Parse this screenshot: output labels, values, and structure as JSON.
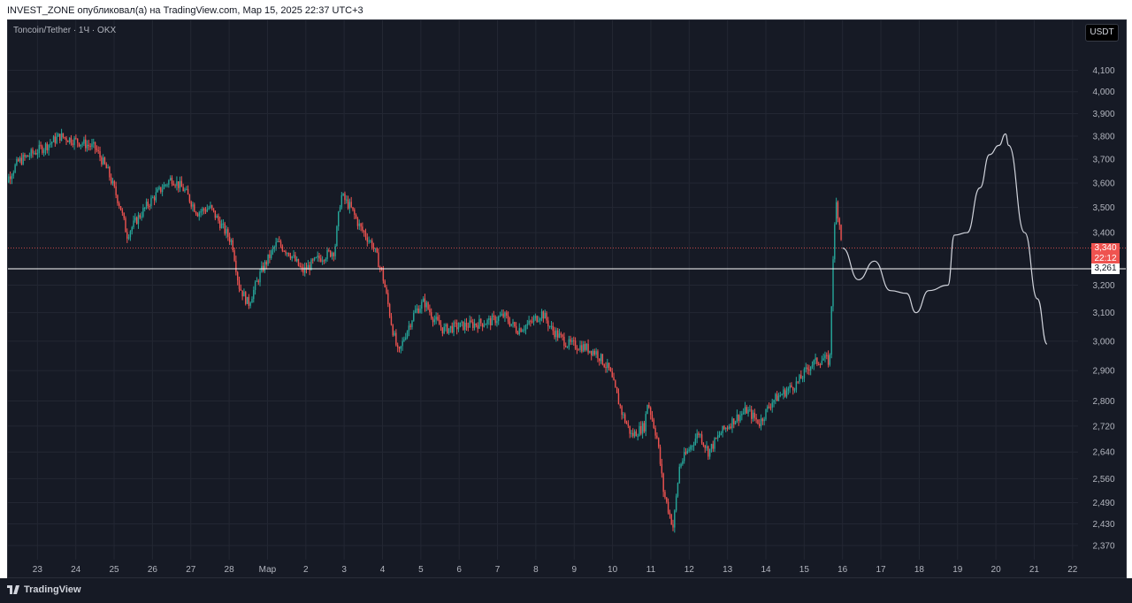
{
  "header": {
    "text": "INVEST_ZONE опубликовал(а) на TradingView.com, Мар 15, 2025 22:37 UTC+3"
  },
  "chart": {
    "symbol_label": "Toncoin/Tether · 1Ч · OKX",
    "currency_button": "USDT",
    "last_price_label": "3,340",
    "countdown_label": "22:12",
    "hline_price_label": "3,261"
  },
  "footer": {
    "logo_text": "TradingView",
    "logo_icon": "tradingview-logo-icon"
  },
  "colors": {
    "background": "#161a25",
    "grid": "#232733",
    "up": "#26a69a",
    "down": "#ef5350",
    "text": "#b2b5be",
    "hline": "#ffffff",
    "forecast": "#d1d4dc"
  },
  "chart_data": {
    "type": "candlestick",
    "interval": "1h",
    "y_axis_ticks": [
      4100,
      4000,
      3900,
      3800,
      3700,
      3600,
      3500,
      3400,
      3200,
      3100,
      3000,
      2900,
      2800,
      2720,
      2640,
      2560,
      2490,
      2430,
      2370
    ],
    "y_axis_tick_labels": [
      "4,100",
      "4,000",
      "3,900",
      "3,800",
      "3,700",
      "3,600",
      "3,500",
      "3,400",
      "3,200",
      "3,100",
      "3,000",
      "2,900",
      "2,800",
      "2,720",
      "2,640",
      "2,560",
      "2,490",
      "2,430",
      "2,370"
    ],
    "x_axis_labels": [
      "23",
      "24",
      "25",
      "26",
      "27",
      "28",
      "Мар",
      "2",
      "3",
      "4",
      "5",
      "6",
      "7",
      "8",
      "9",
      "10",
      "11",
      "12",
      "13",
      "14",
      "15",
      "16",
      "17",
      "18",
      "19",
      "20",
      "21",
      "22"
    ],
    "ylim": [
      2350,
      4150
    ],
    "scale": "log",
    "last_price": 3340,
    "horizontal_line": 3261,
    "price_path": [
      [
        "22T00",
        3560
      ],
      [
        "22T12",
        3690
      ],
      [
        "23T06",
        3760
      ],
      [
        "23T14",
        3800
      ],
      [
        "24T00",
        3780
      ],
      [
        "24T12",
        3750
      ],
      [
        "24T20",
        3650
      ],
      [
        "25T04",
        3500
      ],
      [
        "25T08",
        3390
      ],
      [
        "25T14",
        3450
      ],
      [
        "25T22",
        3520
      ],
      [
        "26T06",
        3580
      ],
      [
        "26T12",
        3620
      ],
      [
        "26T20",
        3570
      ],
      [
        "27T04",
        3480
      ],
      [
        "27T12",
        3500
      ],
      [
        "27T20",
        3420
      ],
      [
        "28T02",
        3360
      ],
      [
        "28T06",
        3200
      ],
      [
        "28T12",
        3130
      ],
      [
        "28T20",
        3250
      ],
      [
        "01T06",
        3360
      ],
      [
        "01T14",
        3320
      ],
      [
        "01T22",
        3250
      ],
      [
        "02T08",
        3300
      ],
      [
        "02T18",
        3330
      ],
      [
        "02T22",
        3550
      ],
      [
        "03T04",
        3500
      ],
      [
        "03T10",
        3420
      ],
      [
        "03T18",
        3350
      ],
      [
        "04T00",
        3240
      ],
      [
        "04T06",
        3050
      ],
      [
        "04T10",
        2950
      ],
      [
        "04T14",
        3020
      ],
      [
        "04T20",
        3100
      ],
      [
        "05T02",
        3140
      ],
      [
        "05T08",
        3080
      ],
      [
        "05T14",
        3040
      ],
      [
        "05T22",
        3050
      ],
      [
        "06T10",
        3060
      ],
      [
        "06T20",
        3070
      ],
      [
        "07T04",
        3090
      ],
      [
        "07T12",
        3040
      ],
      [
        "07T20",
        3060
      ],
      [
        "08T04",
        3100
      ],
      [
        "08T10",
        3040
      ],
      [
        "08T20",
        2990
      ],
      [
        "09T06",
        2980
      ],
      [
        "09T14",
        2960
      ],
      [
        "09T22",
        2900
      ],
      [
        "10T06",
        2760
      ],
      [
        "10T12",
        2690
      ],
      [
        "10T20",
        2720
      ],
      [
        "10T22",
        2800
      ],
      [
        "11T04",
        2680
      ],
      [
        "11T08",
        2520
      ],
      [
        "11T14",
        2420
      ],
      [
        "11T18",
        2600
      ],
      [
        "12T00",
        2650
      ],
      [
        "12T06",
        2700
      ],
      [
        "12T12",
        2640
      ],
      [
        "12T20",
        2700
      ],
      [
        "13T04",
        2740
      ],
      [
        "13T12",
        2770
      ],
      [
        "13T20",
        2730
      ],
      [
        "14T04",
        2800
      ],
      [
        "14T12",
        2830
      ],
      [
        "14T20",
        2860
      ],
      [
        "15T04",
        2920
      ],
      [
        "15T12",
        2940
      ],
      [
        "15T16",
        2930
      ],
      [
        "15T18",
        3300
      ],
      [
        "15T20",
        3520
      ],
      [
        "15T22",
        3440
      ],
      [
        "16T00",
        3340
      ]
    ],
    "forecast_path": [
      [
        "16T00",
        3340
      ],
      [
        "16T10",
        3220
      ],
      [
        "16T20",
        3290
      ],
      [
        "17T06",
        3180
      ],
      [
        "17T16",
        3170
      ],
      [
        "17T22",
        3100
      ],
      [
        "18T06",
        3180
      ],
      [
        "18T18",
        3200
      ],
      [
        "18T22",
        3390
      ],
      [
        "19T06",
        3400
      ],
      [
        "19T14",
        3580
      ],
      [
        "19T20",
        3720
      ],
      [
        "20T02",
        3760
      ],
      [
        "20T06",
        3810
      ],
      [
        "20T08",
        3760
      ],
      [
        "20T18",
        3400
      ],
      [
        "21T02",
        3150
      ],
      [
        "21T08",
        2990
      ]
    ]
  }
}
